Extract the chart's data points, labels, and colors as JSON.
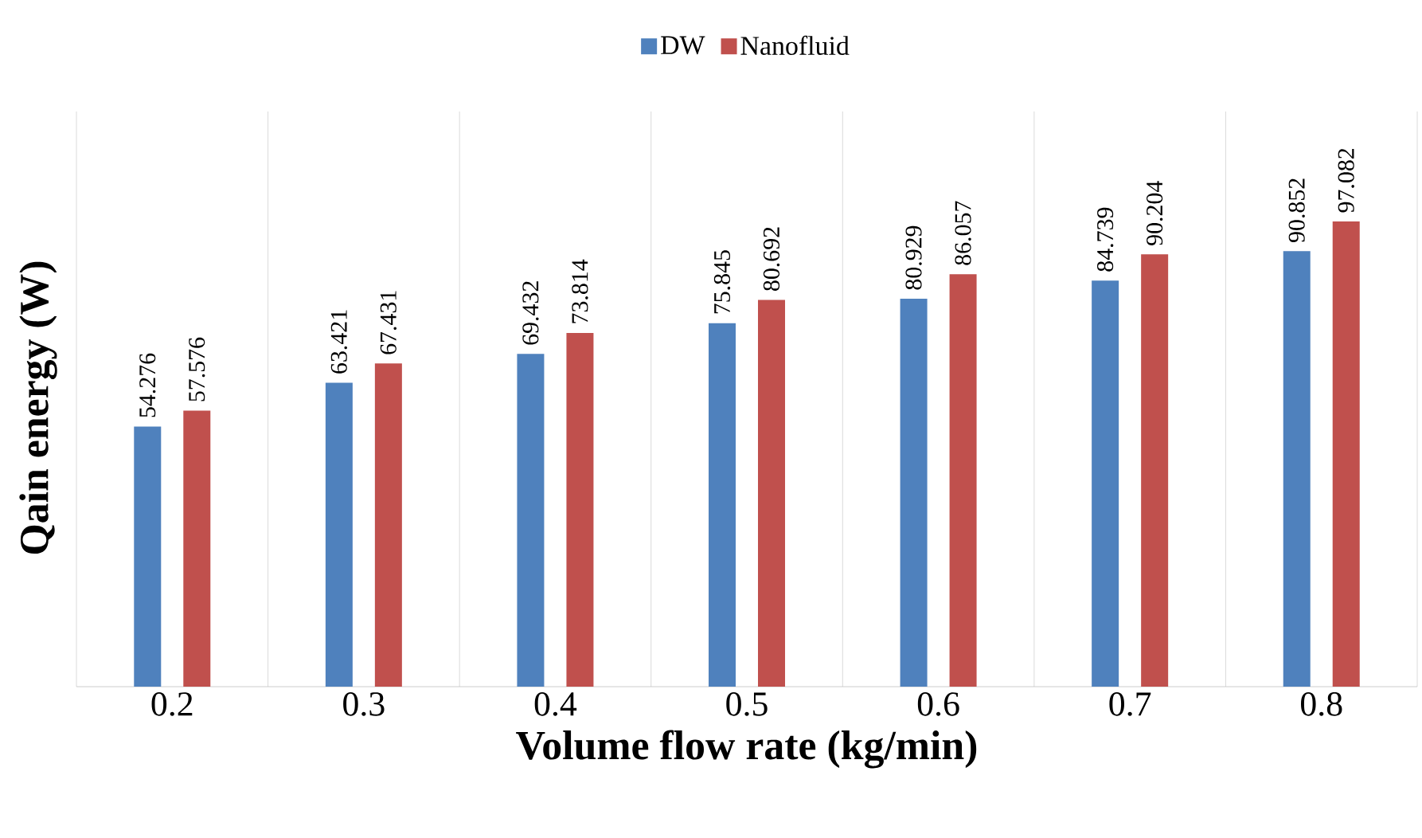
{
  "chart_data": {
    "type": "bar",
    "xlabel": "Volume flow rate (kg/min)",
    "ylabel": "Qain energy (W)",
    "categories": [
      "0.2",
      "0.3",
      "0.4",
      "0.5",
      "0.6",
      "0.7",
      "0.8"
    ],
    "series": [
      {
        "name": "DW",
        "color": "#4f81bd",
        "values": [
          54.276,
          63.421,
          69.432,
          75.845,
          80.929,
          84.739,
          90.852
        ]
      },
      {
        "name": "Nanofluid",
        "color": "#c0504d",
        "values": [
          57.576,
          67.431,
          73.814,
          80.692,
          86.057,
          90.204,
          97.082
        ]
      }
    ],
    "ylim": [
      0,
      120
    ],
    "grid": "x",
    "legend": "top",
    "data_labels": true
  }
}
